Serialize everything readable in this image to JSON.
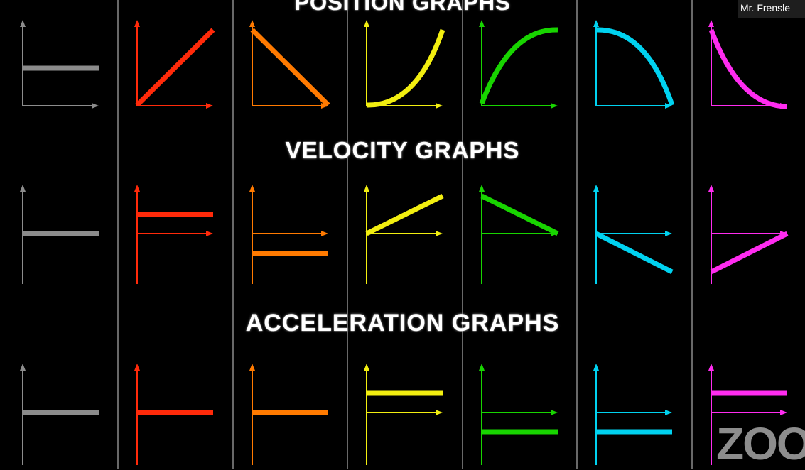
{
  "titles": {
    "position": "POSITION GRAPHS",
    "velocity": "VELOCITY GRAPHS",
    "acceleration": "ACCELERATION GRAPHS"
  },
  "participant_name": "Mr. Frensle",
  "watermark": "ZOO",
  "columns": [
    {
      "color": "#8c8c8c",
      "position": "horizontal",
      "velocity": "zero",
      "acceleration": "zero"
    },
    {
      "color": "#ff2a0a",
      "position": "increasing-line",
      "velocity": "positive-constant",
      "acceleration": "zero"
    },
    {
      "color": "#ff7a00",
      "position": "decreasing-line",
      "velocity": "negative-constant",
      "acceleration": "zero"
    },
    {
      "color": "#f2ee10",
      "position": "concave-up-increasing",
      "velocity": "increasing",
      "acceleration": "positive-constant"
    },
    {
      "color": "#18d400",
      "position": "concave-down-increasing",
      "velocity": "decreasing-to-zero",
      "acceleration": "negative-constant"
    },
    {
      "color": "#00d2f0",
      "position": "concave-down-decreasing",
      "velocity": "decreasing-negative",
      "acceleration": "negative-constant"
    },
    {
      "color": "#ff2cf0",
      "position": "concave-up-decreasing",
      "velocity": "increasing-to-zero",
      "acceleration": "positive-constant"
    }
  ]
}
